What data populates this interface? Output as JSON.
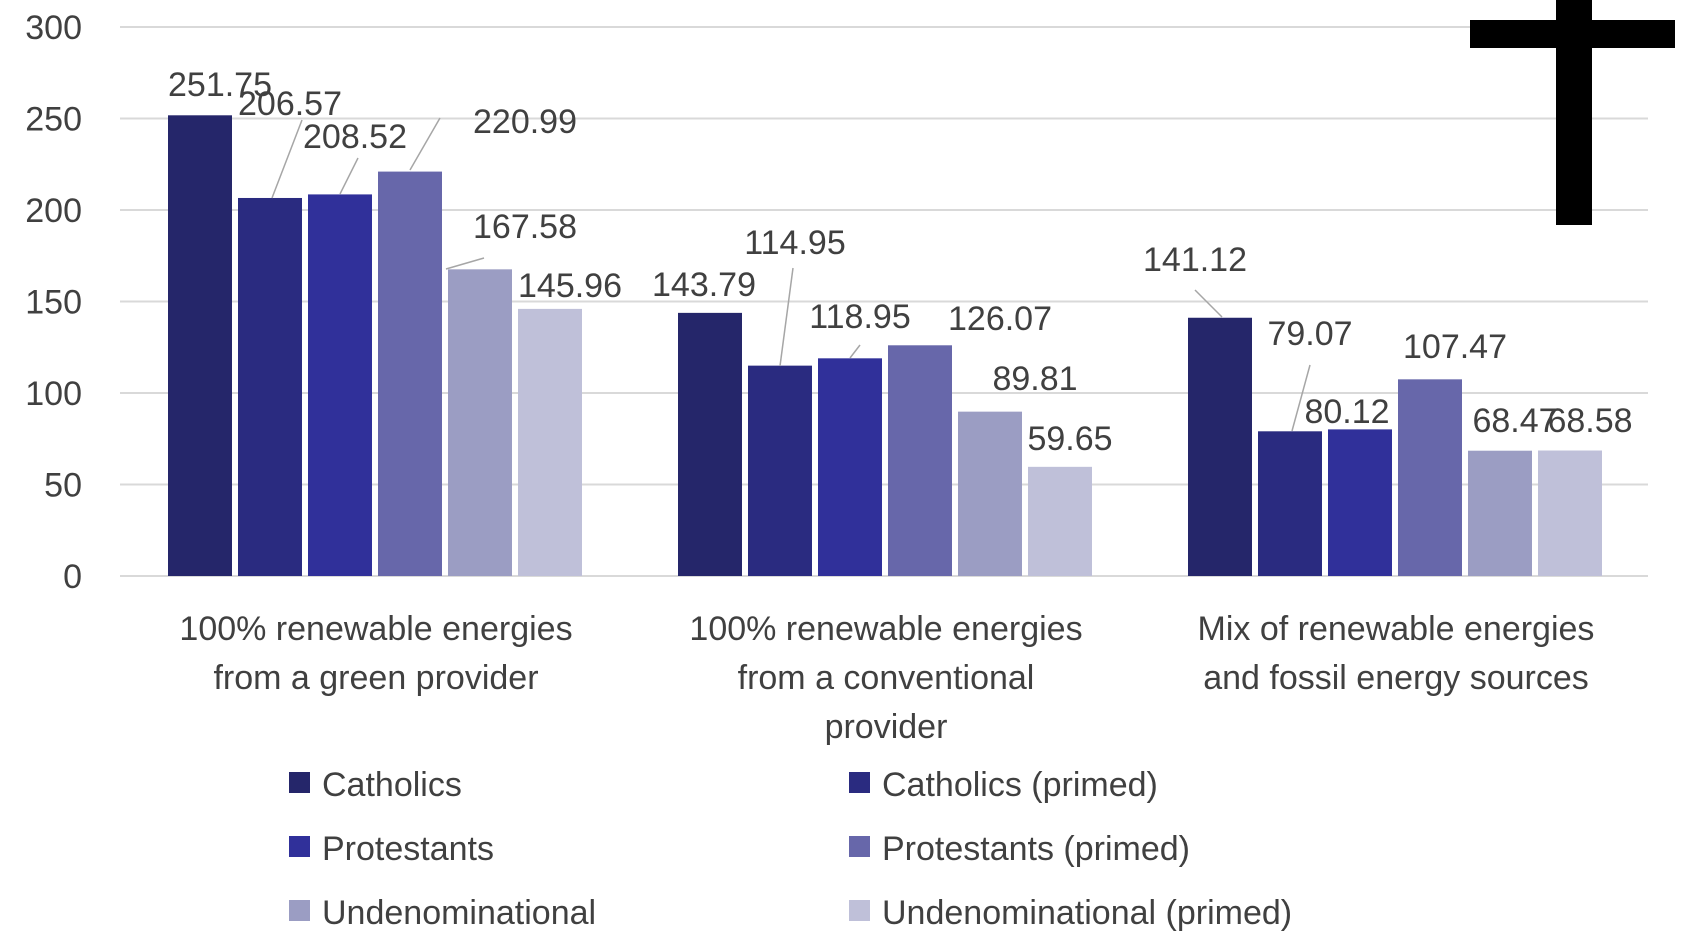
{
  "chart_data": {
    "type": "bar",
    "categories": [
      [
        "100% renewable energies",
        "from a green provider"
      ],
      [
        "100% renewable energies",
        "from a conventional",
        "provider"
      ],
      [
        "Mix of renewable energies",
        "and fossil energy sources"
      ]
    ],
    "series": [
      {
        "name": "Catholics",
        "color": "#25266a",
        "values": [
          251.75,
          143.79,
          141.12
        ],
        "labels": [
          "251.75",
          "143.79",
          "141.12"
        ]
      },
      {
        "name": "Catholics (primed)",
        "color": "#2a2b80",
        "values": [
          206.57,
          114.95,
          79.07
        ],
        "labels": [
          "206.57",
          "114.95",
          "79.07"
        ]
      },
      {
        "name": "Protestants",
        "color": "#30309a",
        "values": [
          208.52,
          118.95,
          80.12
        ],
        "labels": [
          "208.52",
          "118.95",
          "80.12"
        ]
      },
      {
        "name": "Protestants (primed)",
        "color": "#6767aa",
        "values": [
          220.99,
          126.07,
          107.47
        ],
        "labels": [
          "220.99",
          "126.07",
          "107.47"
        ]
      },
      {
        "name": "Undenominational",
        "color": "#9b9dc3",
        "values": [
          167.58,
          89.81,
          68.47
        ],
        "labels": [
          "167.58",
          "89.81",
          "68.47"
        ]
      },
      {
        "name": "Undenominational (primed)",
        "color": "#bfc0d9",
        "values": [
          145.96,
          59.65,
          68.58
        ],
        "labels": [
          "145.96",
          "59.65",
          "68.58"
        ]
      }
    ],
    "ylim": [
      0,
      300
    ],
    "yticks": [
      "0",
      "50",
      "100",
      "150",
      "200",
      "250",
      "300"
    ],
    "grid": true,
    "legend_position": "bottom",
    "title": "",
    "xlabel": "",
    "ylabel": ""
  },
  "decoration": {
    "icon": "latin-cross-icon",
    "color": "#000000"
  }
}
